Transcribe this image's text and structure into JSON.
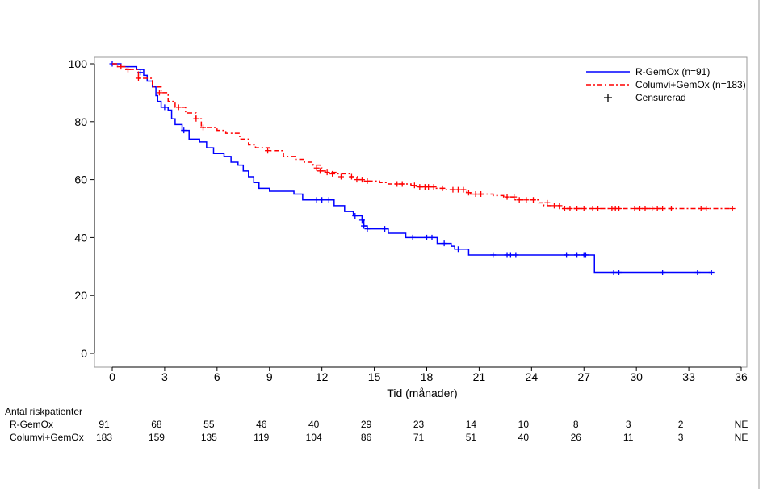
{
  "chart_data": {
    "type": "line",
    "subtype": "kaplan-meier",
    "title": "",
    "xlabel": "Tid (månader)",
    "ylabel": "",
    "xlim": [
      0,
      36
    ],
    "ylim": [
      0,
      100
    ],
    "xticks": [
      0,
      3,
      6,
      9,
      12,
      15,
      18,
      21,
      24,
      27,
      30,
      33,
      36
    ],
    "yticks": [
      0,
      20,
      40,
      60,
      80,
      100
    ],
    "legend_position": "top-right",
    "legend": [
      {
        "label": "R-GemOx (n=91)",
        "color": "#0000ff",
        "style": "solid"
      },
      {
        "label": "Columvi+GemOx (n=183)",
        "color": "#ff0000",
        "style": "dash-dot"
      },
      {
        "label": "Censurerad",
        "color": "#000000",
        "style": "plus-marker"
      }
    ],
    "series": [
      {
        "name": "R-GemOx",
        "color": "#0000ff",
        "steps": [
          [
            0,
            100
          ],
          [
            0.5,
            99
          ],
          [
            1.4,
            98
          ],
          [
            1.8,
            96
          ],
          [
            2.0,
            94
          ],
          [
            2.3,
            92
          ],
          [
            2.5,
            89
          ],
          [
            2.6,
            87
          ],
          [
            2.8,
            85
          ],
          [
            3.2,
            84
          ],
          [
            3.4,
            81
          ],
          [
            3.6,
            79
          ],
          [
            4.0,
            77
          ],
          [
            4.4,
            74
          ],
          [
            5.0,
            73
          ],
          [
            5.4,
            71
          ],
          [
            5.8,
            69
          ],
          [
            6.4,
            68
          ],
          [
            6.8,
            66
          ],
          [
            7.2,
            65
          ],
          [
            7.5,
            63
          ],
          [
            7.8,
            61
          ],
          [
            8.1,
            59
          ],
          [
            8.4,
            57
          ],
          [
            9.0,
            56
          ],
          [
            10.4,
            55
          ],
          [
            10.9,
            53
          ],
          [
            12.7,
            51
          ],
          [
            13.3,
            49
          ],
          [
            13.8,
            47.5
          ],
          [
            14.3,
            46
          ],
          [
            14.4,
            44
          ],
          [
            14.6,
            43
          ],
          [
            15.6,
            43
          ],
          [
            15.8,
            41.5
          ],
          [
            16.8,
            40
          ],
          [
            18.6,
            38
          ],
          [
            19.4,
            37
          ],
          [
            19.6,
            36
          ],
          [
            20.4,
            34
          ],
          [
            27.6,
            28
          ]
        ],
        "end": 34.3,
        "censored": [
          [
            0,
            100
          ],
          [
            1.6,
            97
          ],
          [
            3.0,
            85
          ],
          [
            4.1,
            77
          ],
          [
            11.7,
            53
          ],
          [
            12.0,
            53
          ],
          [
            12.4,
            53
          ],
          [
            13.9,
            47.5
          ],
          [
            14.3,
            46
          ],
          [
            14.4,
            44
          ],
          [
            14.6,
            43
          ],
          [
            15.6,
            43
          ],
          [
            17.2,
            40
          ],
          [
            18.0,
            40
          ],
          [
            18.3,
            40
          ],
          [
            19.0,
            38
          ],
          [
            19.8,
            36
          ],
          [
            21.8,
            34
          ],
          [
            22.6,
            34
          ],
          [
            22.8,
            34
          ],
          [
            23.1,
            34
          ],
          [
            26.0,
            34
          ],
          [
            26.6,
            34
          ],
          [
            27.0,
            34
          ],
          [
            27.1,
            34
          ],
          [
            28.7,
            28
          ],
          [
            29.0,
            28
          ],
          [
            31.5,
            28
          ],
          [
            33.5,
            28
          ],
          [
            34.3,
            28
          ]
        ]
      },
      {
        "name": "Columvi+GemOx",
        "color": "#ff0000",
        "steps": [
          [
            0,
            100
          ],
          [
            0.3,
            99
          ],
          [
            0.8,
            98
          ],
          [
            1.5,
            95
          ],
          [
            2.3,
            92
          ],
          [
            2.8,
            90
          ],
          [
            3.2,
            87
          ],
          [
            3.6,
            85
          ],
          [
            4.2,
            83
          ],
          [
            4.8,
            81
          ],
          [
            5.1,
            78
          ],
          [
            6.0,
            77
          ],
          [
            6.5,
            76
          ],
          [
            7.3,
            74
          ],
          [
            7.8,
            72
          ],
          [
            8.2,
            71
          ],
          [
            9.0,
            70
          ],
          [
            9.8,
            68
          ],
          [
            10.5,
            67
          ],
          [
            11.0,
            66
          ],
          [
            11.5,
            65
          ],
          [
            11.9,
            64
          ],
          [
            12.0,
            63
          ],
          [
            12.2,
            62.5
          ],
          [
            12.8,
            62
          ],
          [
            13.6,
            61
          ],
          [
            14.1,
            60
          ],
          [
            14.4,
            59.5
          ],
          [
            15.3,
            59
          ],
          [
            15.8,
            58.5
          ],
          [
            17.1,
            58
          ],
          [
            17.4,
            57.5
          ],
          [
            18.5,
            57
          ],
          [
            19.0,
            56.5
          ],
          [
            20.3,
            55.5
          ],
          [
            20.5,
            55
          ],
          [
            21.8,
            54.5
          ],
          [
            22.4,
            54
          ],
          [
            23.0,
            53
          ],
          [
            24.4,
            52
          ],
          [
            24.7,
            51
          ],
          [
            25.6,
            50
          ]
        ],
        "end": 35.5,
        "censored": [
          [
            0.5,
            99
          ],
          [
            0.9,
            98
          ],
          [
            1.5,
            95
          ],
          [
            2.7,
            90
          ],
          [
            3.8,
            85
          ],
          [
            4.8,
            81
          ],
          [
            5.2,
            78
          ],
          [
            8.9,
            70
          ],
          [
            11.7,
            64
          ],
          [
            11.9,
            63
          ],
          [
            12.3,
            62.5
          ],
          [
            12.6,
            62
          ],
          [
            13.1,
            61
          ],
          [
            13.7,
            61
          ],
          [
            14.0,
            60
          ],
          [
            14.3,
            60
          ],
          [
            14.6,
            59.5
          ],
          [
            16.3,
            58.5
          ],
          [
            16.6,
            58.5
          ],
          [
            17.3,
            58
          ],
          [
            17.6,
            57.5
          ],
          [
            17.9,
            57.5
          ],
          [
            18.1,
            57.5
          ],
          [
            18.4,
            57.5
          ],
          [
            18.9,
            57
          ],
          [
            19.5,
            56.5
          ],
          [
            19.8,
            56.5
          ],
          [
            20.1,
            56.5
          ],
          [
            20.4,
            55.5
          ],
          [
            20.8,
            55
          ],
          [
            21.1,
            55
          ],
          [
            22.6,
            54
          ],
          [
            23.0,
            54
          ],
          [
            23.3,
            53
          ],
          [
            23.7,
            53
          ],
          [
            24.1,
            53
          ],
          [
            24.9,
            52
          ],
          [
            25.3,
            51
          ],
          [
            25.6,
            51
          ],
          [
            25.9,
            50
          ],
          [
            26.2,
            50
          ],
          [
            26.6,
            50
          ],
          [
            27.0,
            50
          ],
          [
            27.5,
            50
          ],
          [
            27.8,
            50
          ],
          [
            28.6,
            50
          ],
          [
            28.8,
            50
          ],
          [
            29.0,
            50
          ],
          [
            29.9,
            50
          ],
          [
            30.2,
            50
          ],
          [
            30.5,
            50
          ],
          [
            30.9,
            50
          ],
          [
            31.2,
            50
          ],
          [
            31.5,
            50
          ],
          [
            32.0,
            50
          ],
          [
            33.7,
            50
          ],
          [
            34.0,
            50
          ],
          [
            35.5,
            50
          ]
        ]
      }
    ],
    "risk_table": {
      "title": "Antal riskpatienter",
      "times": [
        0,
        3,
        6,
        9,
        12,
        15,
        18,
        21,
        24,
        27,
        30,
        33,
        36
      ],
      "rows": [
        {
          "label": "R-GemOx",
          "values": [
            "91",
            "68",
            "55",
            "46",
            "40",
            "29",
            "23",
            "14",
            "10",
            "8",
            "3",
            "2",
            "NE"
          ]
        },
        {
          "label": "Columvi+GemOx",
          "values": [
            "183",
            "159",
            "135",
            "119",
            "104",
            "86",
            "71",
            "51",
            "40",
            "26",
            "11",
            "3",
            "NE"
          ]
        }
      ]
    }
  }
}
